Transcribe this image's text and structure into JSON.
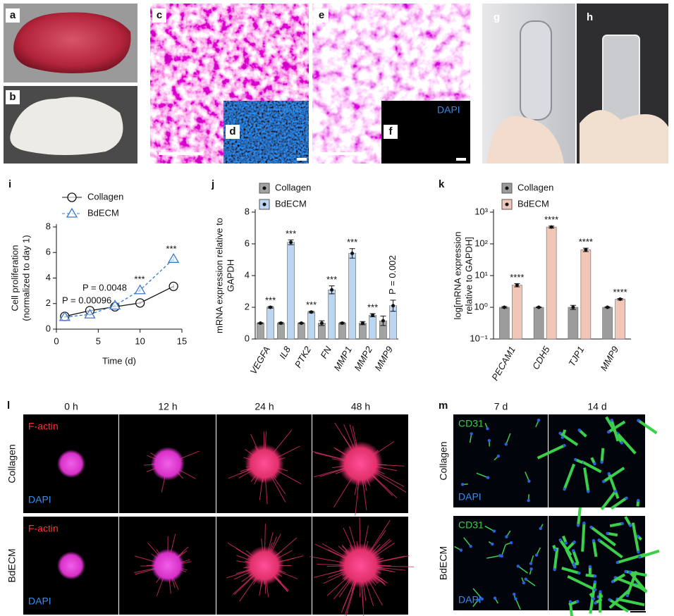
{
  "images": {
    "letters": [
      "a",
      "b",
      "c",
      "d",
      "e",
      "f",
      "g",
      "h",
      "l",
      "m"
    ],
    "dapi": "DAPI",
    "l": {
      "times": [
        "0 h",
        "12 h",
        "24 h",
        "48 h"
      ],
      "rows": [
        "Collagen",
        "BdECM"
      ],
      "stain_red": "F-actin",
      "stain_blue": "DAPI"
    },
    "m": {
      "times": [
        "7 d",
        "14 d"
      ],
      "rows": [
        "Collagen",
        "BdECM"
      ],
      "stain_green": "CD31",
      "stain_blue": "DAPI"
    }
  },
  "chart_data": [
    {
      "type": "line",
      "label": "i",
      "xlabel": "Time (d)",
      "ylabel": [
        "Cell proliferation",
        "(normalized to day 1)"
      ],
      "x": [
        1,
        4,
        7,
        10,
        14
      ],
      "xlim": [
        0,
        15
      ],
      "xticks": [
        0,
        5,
        10,
        15
      ],
      "ylim": [
        0,
        8
      ],
      "yticks": [
        0,
        2,
        4,
        6,
        8
      ],
      "series": [
        {
          "name": "Collagen",
          "color": "#111111",
          "marker": "circle",
          "dash": false,
          "values": [
            1.0,
            1.45,
            1.75,
            2.05,
            3.35
          ],
          "errors": [
            0.05,
            0.1,
            0.1,
            0.1,
            0.15
          ]
        },
        {
          "name": "BdECM",
          "color": "#3a78c9",
          "marker": "triangle",
          "dash": true,
          "values": [
            0.95,
            1.15,
            1.85,
            3.05,
            5.5
          ],
          "errors": [
            0.05,
            0.1,
            0.1,
            0.15,
            0.2
          ]
        }
      ],
      "annotations": [
        "P = 0.00096",
        "P = 0.0048",
        "***",
        "***"
      ]
    },
    {
      "type": "bar",
      "label": "j",
      "ylabel": [
        "mRNA expression relative to",
        "GAPDH"
      ],
      "categories": [
        "VEGFA",
        "IL8",
        "PTK2",
        "FN",
        "MMP1",
        "MMP2",
        "MMP9"
      ],
      "ylim": [
        0,
        8
      ],
      "yticks": [
        0,
        2,
        4,
        6,
        8
      ],
      "log_y": false,
      "series": [
        {
          "name": "Collagen",
          "color": "#a3a3a3",
          "values": [
            1,
            1,
            1,
            1,
            1,
            1,
            1.15
          ],
          "errors": [
            0.03,
            0.05,
            0.03,
            0.15,
            0.05,
            0.1,
            0.3
          ]
        },
        {
          "name": "BdECM",
          "color": "#bcd6f2",
          "values": [
            2.0,
            6.1,
            1.7,
            3.1,
            5.4,
            1.5,
            2.1
          ],
          "errors": [
            0.05,
            0.15,
            0.05,
            0.25,
            0.3,
            0.1,
            0.35
          ]
        }
      ],
      "annotations": [
        "***",
        "***",
        "***",
        "***",
        "***",
        "***",
        "P = 0.002"
      ]
    },
    {
      "type": "bar",
      "label": "k",
      "ylabel": [
        "log[mRNA expression",
        "relative to GAPDH]"
      ],
      "categories": [
        "PECAM1",
        "CDH5",
        "TJP1",
        "MMP9"
      ],
      "ylim": [
        0.1,
        1000
      ],
      "log_y": true,
      "yticks": [
        {
          "value": 0.1,
          "label": "10⁻¹"
        },
        {
          "value": 1,
          "label": "10⁰"
        },
        {
          "value": 10,
          "label": "10¹"
        },
        {
          "value": 100,
          "label": "10²"
        },
        {
          "value": 1000,
          "label": "10³"
        }
      ],
      "series": [
        {
          "name": "Collagen",
          "color": "#9c9c9c",
          "values": [
            1,
            1,
            1,
            1
          ],
          "errors": [
            0.05,
            0.03,
            0.15,
            0.04
          ]
        },
        {
          "name": "BdECM",
          "color": "#f2c6b6",
          "values": [
            5,
            340,
            65,
            1.8
          ],
          "errors": [
            0.6,
            25,
            8,
            0.1
          ]
        }
      ],
      "annotations": [
        "****",
        "****",
        "****",
        "****"
      ]
    }
  ]
}
